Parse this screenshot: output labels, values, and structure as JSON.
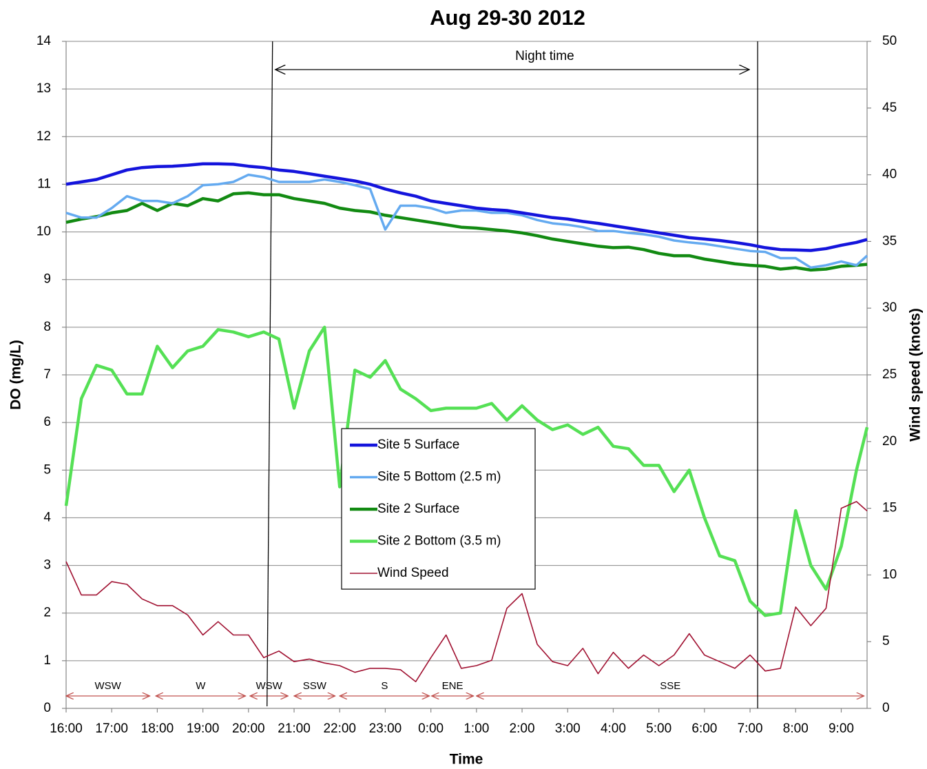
{
  "chart_data": {
    "type": "line",
    "title": "Aug 29-30 2012",
    "x_label": "Time",
    "y_label": "DO (mg/L)",
    "y2_label": "Wind speed (knots)",
    "xlim": [
      0,
      1054
    ],
    "xticks": [
      {
        "value": 0,
        "label": "16:00"
      },
      {
        "value": 60,
        "label": "17:00"
      },
      {
        "value": 120,
        "label": "18:00"
      },
      {
        "value": 180,
        "label": "19:00"
      },
      {
        "value": 240,
        "label": "20:00"
      },
      {
        "value": 300,
        "label": "21:00"
      },
      {
        "value": 360,
        "label": "22:00"
      },
      {
        "value": 420,
        "label": "23:00"
      },
      {
        "value": 480,
        "label": "0:00"
      },
      {
        "value": 540,
        "label": "1:00"
      },
      {
        "value": 600,
        "label": "2:00"
      },
      {
        "value": 660,
        "label": "3:00"
      },
      {
        "value": 720,
        "label": "4:00"
      },
      {
        "value": 780,
        "label": "5:00"
      },
      {
        "value": 840,
        "label": "6:00"
      },
      {
        "value": 900,
        "label": "7:00"
      },
      {
        "value": 960,
        "label": "8:00"
      },
      {
        "value": 1020,
        "label": "9:00"
      }
    ],
    "ylim": [
      0,
      14
    ],
    "yticks": [
      0,
      1,
      2,
      3,
      4,
      5,
      6,
      7,
      8,
      9,
      10,
      11,
      12,
      13,
      14
    ],
    "y2lim": [
      0,
      50
    ],
    "y2ticks": [
      0,
      5,
      10,
      15,
      20,
      25,
      30,
      35,
      40,
      45,
      50
    ],
    "grid": true,
    "x": [
      0,
      20,
      40,
      60,
      80,
      100,
      120,
      140,
      160,
      180,
      200,
      220,
      240,
      260,
      280,
      300,
      320,
      340,
      360,
      380,
      400,
      420,
      440,
      460,
      480,
      500,
      520,
      540,
      560,
      580,
      600,
      620,
      640,
      660,
      680,
      700,
      720,
      740,
      760,
      780,
      800,
      820,
      840,
      860,
      880,
      900,
      920,
      940,
      960,
      980,
      1000,
      1020,
      1040,
      1054
    ],
    "series": [
      {
        "name": "Site 5 Surface",
        "color": "#1414dc",
        "width": 4.5,
        "values": [
          11.0,
          11.05,
          11.1,
          11.2,
          11.3,
          11.35,
          11.37,
          11.38,
          11.4,
          11.43,
          11.43,
          11.42,
          11.38,
          11.35,
          11.3,
          11.27,
          11.22,
          11.17,
          11.12,
          11.07,
          11.0,
          10.9,
          10.82,
          10.75,
          10.65,
          10.6,
          10.55,
          10.5,
          10.47,
          10.45,
          10.4,
          10.35,
          10.3,
          10.27,
          10.22,
          10.18,
          10.13,
          10.08,
          10.03,
          9.98,
          9.93,
          9.88,
          9.85,
          9.82,
          9.78,
          9.73,
          9.67,
          9.63,
          9.62,
          9.61,
          9.65,
          9.72,
          9.78,
          9.84
        ]
      },
      {
        "name": "Site 5 Bottom (2.5 m)",
        "color": "#64aaf0",
        "width": 3.5,
        "values": [
          10.4,
          10.3,
          10.3,
          10.5,
          10.75,
          10.65,
          10.65,
          10.6,
          10.75,
          10.98,
          11.0,
          11.05,
          11.2,
          11.15,
          11.05,
          11.05,
          11.05,
          11.1,
          11.05,
          10.98,
          10.9,
          10.05,
          10.55,
          10.55,
          10.5,
          10.4,
          10.45,
          10.45,
          10.4,
          10.4,
          10.35,
          10.25,
          10.18,
          10.15,
          10.1,
          10.02,
          10.02,
          9.98,
          9.95,
          9.9,
          9.82,
          9.78,
          9.75,
          9.7,
          9.65,
          9.6,
          9.58,
          9.45,
          9.45,
          9.25,
          9.3,
          9.38,
          9.3,
          9.5
        ]
      },
      {
        "name": "Site 2 Surface",
        "color": "#128a12",
        "width": 4.5,
        "values": [
          10.2,
          10.27,
          10.32,
          10.4,
          10.45,
          10.6,
          10.45,
          10.6,
          10.55,
          10.7,
          10.65,
          10.8,
          10.82,
          10.78,
          10.78,
          10.7,
          10.65,
          10.6,
          10.5,
          10.45,
          10.42,
          10.35,
          10.3,
          10.25,
          10.2,
          10.15,
          10.1,
          10.08,
          10.05,
          10.02,
          9.98,
          9.92,
          9.85,
          9.8,
          9.75,
          9.7,
          9.67,
          9.68,
          9.63,
          9.55,
          9.5,
          9.5,
          9.43,
          9.38,
          9.33,
          9.3,
          9.28,
          9.22,
          9.25,
          9.2,
          9.22,
          9.28,
          9.3,
          9.32
        ]
      },
      {
        "name": "Site 2 Bottom (3.5 m)",
        "color": "#55e055",
        "width": 4.5,
        "values": [
          4.25,
          6.5,
          7.2,
          7.1,
          6.6,
          6.6,
          7.6,
          7.15,
          7.5,
          7.6,
          7.95,
          7.9,
          7.8,
          7.9,
          7.75,
          6.3,
          7.5,
          8.0,
          4.65,
          7.1,
          6.95,
          7.3,
          6.7,
          6.5,
          6.25,
          6.3,
          6.3,
          6.3,
          6.4,
          6.05,
          6.35,
          6.05,
          5.85,
          5.95,
          5.75,
          5.9,
          5.5,
          5.45,
          5.1,
          5.1,
          4.55,
          5.0,
          4.0,
          3.2,
          3.1,
          2.25,
          1.95,
          2.0,
          4.15,
          3.0,
          2.5,
          3.4,
          5.0,
          5.9
        ]
      },
      {
        "name": "Wind Speed",
        "color": "#a01030",
        "width": 1.6,
        "axis": "y2",
        "values": [
          11,
          8.5,
          8.5,
          9.5,
          9.3,
          8.2,
          7.7,
          7.7,
          7.0,
          5.5,
          6.5,
          5.5,
          5.5,
          3.8,
          4.3,
          3.5,
          3.7,
          3.4,
          3.2,
          2.7,
          3.0,
          3.0,
          2.9,
          2.0,
          3.8,
          5.5,
          3.0,
          3.2,
          3.6,
          7.5,
          8.6,
          4.8,
          3.5,
          3.2,
          4.5,
          2.6,
          4.2,
          3.0,
          4.0,
          3.2,
          4.0,
          5.6,
          4.0,
          3.5,
          3.0,
          4.0,
          2.8,
          3.0,
          7.6,
          6.2,
          7.5,
          15.0,
          15.5,
          14.8
        ]
      }
    ],
    "night_time": {
      "label": "Night time",
      "start": 268,
      "end": 910
    },
    "wind_direction": [
      {
        "label": "WSW",
        "start": 0,
        "end": 110
      },
      {
        "label": "W",
        "start": 118,
        "end": 236
      },
      {
        "label": "WSW",
        "start": 242,
        "end": 292
      },
      {
        "label": "SSW",
        "start": 300,
        "end": 354
      },
      {
        "label": "S",
        "start": 360,
        "end": 478
      },
      {
        "label": "ENE",
        "start": 481,
        "end": 536
      },
      {
        "label": "SSE",
        "start": 540,
        "end": 1050
      }
    ]
  }
}
